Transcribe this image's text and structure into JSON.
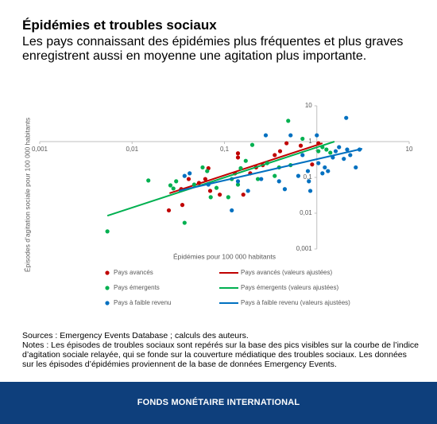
{
  "chart_data": {
    "type": "scatter",
    "title": "Épidémies et troubles sociaux",
    "subtitle": "Les pays connaissant des épidémies plus fréquentes et plus graves enregistrent aussi en moyenne une agitation plus importante.",
    "xlabel": "Épidémies pour 100 000 habitants",
    "ylabel": "Épisodes d’agitation sociale pour 100 000 habitants",
    "sources": "Sources : Emergency Events Database ; calculs des auteurs.",
    "notes": "Notes : Les épisodes de troubles sociaux sont repérés sur la base des pics visibles sur la courbe de l’indice d’agitation sociale relayée, qui se fonde sur la couverture médiatique des troubles sociaux. Les données sur les épisodes d’épidémies proviennent de la base de données Emergency Events.",
    "footer": "FONDS MONÉTAIRE INTERNATIONAL",
    "xscale": "log",
    "yscale": "log",
    "xlim": [
      0.001,
      10
    ],
    "ylim": [
      0.001,
      10
    ],
    "xticks": [
      {
        "value": 0.001,
        "label": "0,001"
      },
      {
        "value": 0.01,
        "label": "0,01"
      },
      {
        "value": 0.1,
        "label": "0,1"
      },
      1,
      10
    ],
    "yticks": [
      {
        "value": 0.001,
        "label": "0,001"
      },
      {
        "value": 0.01,
        "label": "0,01"
      },
      {
        "value": 0.1,
        "label": "0,1"
      },
      1,
      10
    ],
    "xaxis_crosses": 1,
    "yaxis_crosses": 1,
    "series": [
      {
        "name": "Pays avancés",
        "color": "#c00000",
        "mark": "point",
        "x": [
          0.025,
          0.034,
          0.035,
          0.041,
          0.053,
          0.062,
          0.067,
          0.07,
          0.089,
          0.13,
          0.14,
          0.14,
          0.16,
          0.19,
          0.22,
          0.26,
          0.35,
          0.4,
          0.47,
          0.67,
          0.89,
          1.04
        ],
        "values": [
          0.012,
          0.047,
          0.017,
          0.09,
          0.07,
          0.09,
          0.18,
          0.042,
          0.033,
          0.13,
          0.36,
          0.47,
          0.033,
          0.13,
          0.19,
          0.22,
          0.42,
          0.54,
          0.9,
          0.77,
          0.23,
          0.9
        ]
      },
      {
        "name": "Pays avancés (valeurs ajustées)",
        "color": "#c00000",
        "mark": "line",
        "x": [
          0.0254,
          1.15
        ],
        "values": [
          0.036,
          0.9
        ]
      },
      {
        "name": "Pays émergents",
        "color": "#00b050",
        "mark": "point",
        "x": [
          0.0054,
          0.015,
          0.026,
          0.028,
          0.03,
          0.037,
          0.047,
          0.058,
          0.065,
          0.071,
          0.082,
          0.11,
          0.12,
          0.14,
          0.15,
          0.17,
          0.2,
          0.23,
          0.29,
          0.35,
          0.39,
          0.49,
          0.52,
          0.7,
          1.04,
          1.15,
          1.27,
          1.4
        ],
        "values": [
          0.0031,
          0.082,
          0.06,
          0.049,
          0.078,
          0.0054,
          0.063,
          0.19,
          0.15,
          0.028,
          0.051,
          0.028,
          0.09,
          0.063,
          0.18,
          0.29,
          0.81,
          0.09,
          0.25,
          0.11,
          0.19,
          3.8,
          0.22,
          1.2,
          0.54,
          0.7,
          0.6,
          0.49
        ]
      },
      {
        "name": "Pays émergents (valeurs ajustées)",
        "color": "#00b050",
        "mark": "line",
        "x": [
          0.0054,
          1.55
        ],
        "values": [
          0.0085,
          1.0
        ]
      },
      {
        "name": "Pays à faible revenu",
        "color": "#0070c0",
        "mark": "point",
        "x": [
          0.037,
          0.042,
          0.067,
          0.12,
          0.14,
          0.18,
          0.25,
          0.28,
          0.39,
          0.45,
          0.52,
          0.63,
          0.7,
          0.8,
          0.82,
          0.85,
          1.0,
          1.04,
          1.15,
          1.22,
          1.32,
          1.49,
          1.6,
          1.74,
          1.96,
          2.13,
          2.3,
          2.64,
          2.08,
          2.9
        ],
        "values": [
          0.11,
          0.13,
          0.063,
          0.012,
          0.078,
          0.042,
          0.09,
          1.5,
          0.078,
          0.047,
          1.5,
          0.11,
          0.42,
          0.15,
          0.078,
          0.042,
          1.5,
          0.25,
          0.13,
          0.19,
          0.15,
          0.36,
          0.54,
          0.7,
          0.33,
          0.6,
          0.42,
          0.19,
          4.6,
          0.6
        ]
      },
      {
        "name": "Pays à faible revenu (valeurs ajustées)",
        "color": "#0070c0",
        "mark": "line",
        "x": [
          0.032,
          3.1
        ],
        "values": [
          0.042,
          0.63
        ]
      }
    ]
  }
}
